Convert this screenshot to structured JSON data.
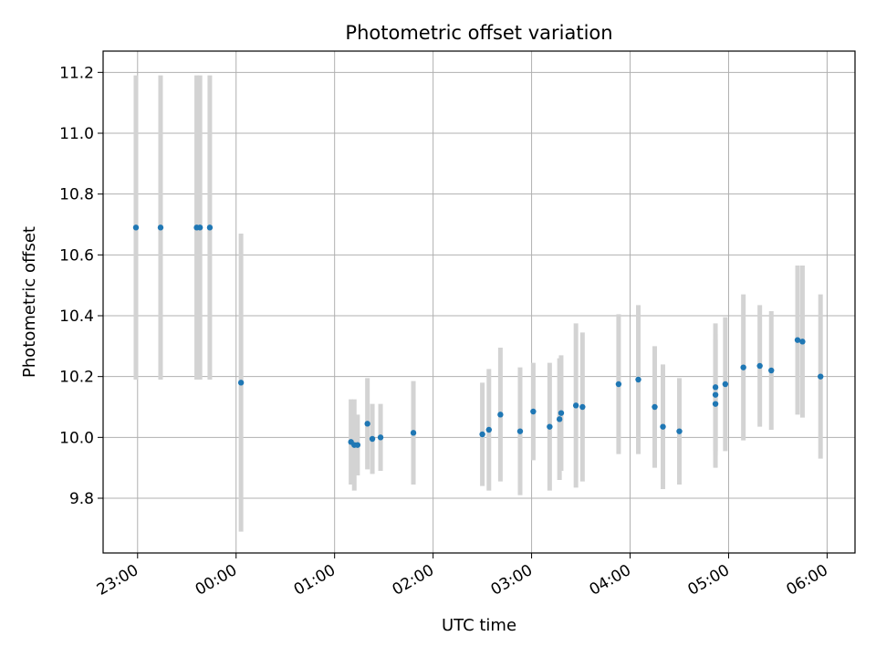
{
  "chart_data": {
    "type": "scatter",
    "title": "Photometric offset variation",
    "xlabel": "UTC time",
    "ylabel": "Photometric offset",
    "grid": true,
    "x_unit": "UTC time of night (22:xx and 23:xx are the evening before; following times are after midnight)",
    "xlim": [
      "22:39",
      "06:17"
    ],
    "ylim": [
      9.62,
      11.27
    ],
    "x_ticks": [
      "23:00",
      "00:00",
      "01:00",
      "02:00",
      "03:00",
      "04:00",
      "05:00",
      "06:00"
    ],
    "y_ticks": [
      "9.8",
      "10.0",
      "10.2",
      "10.4",
      "10.6",
      "10.8",
      "11.0",
      "11.2"
    ],
    "point_color": "#1f77b4",
    "errorbar_color": "#d3d3d3",
    "series": [
      {
        "points": [
          {
            "x": "22:59",
            "y": 10.69,
            "err": 0.5
          },
          {
            "x": "23:14",
            "y": 10.69,
            "err": 0.5
          },
          {
            "x": "23:36",
            "y": 10.69,
            "err": 0.5
          },
          {
            "x": "23:38",
            "y": 10.69,
            "err": 0.5
          },
          {
            "x": "23:44",
            "y": 10.69,
            "err": 0.5
          },
          {
            "x": "00:03",
            "y": 10.18,
            "err": 0.49
          },
          {
            "x": "01:10",
            "y": 9.985,
            "err": 0.14
          },
          {
            "x": "01:12",
            "y": 9.975,
            "err": 0.15
          },
          {
            "x": "01:14",
            "y": 9.975,
            "err": 0.1
          },
          {
            "x": "01:20",
            "y": 10.045,
            "err": 0.15
          },
          {
            "x": "01:23",
            "y": 9.995,
            "err": 0.115
          },
          {
            "x": "01:28",
            "y": 10.0,
            "err": 0.11
          },
          {
            "x": "01:48",
            "y": 10.015,
            "err": 0.17
          },
          {
            "x": "02:30",
            "y": 10.01,
            "err": 0.17
          },
          {
            "x": "02:34",
            "y": 10.025,
            "err": 0.2
          },
          {
            "x": "02:41",
            "y": 10.075,
            "err": 0.22
          },
          {
            "x": "02:53",
            "y": 10.02,
            "err": 0.21
          },
          {
            "x": "03:01",
            "y": 10.085,
            "err": 0.16
          },
          {
            "x": "03:11",
            "y": 10.035,
            "err": 0.21
          },
          {
            "x": "03:17",
            "y": 10.06,
            "err": 0.2
          },
          {
            "x": "03:18",
            "y": 10.08,
            "err": 0.19
          },
          {
            "x": "03:27",
            "y": 10.105,
            "err": 0.27
          },
          {
            "x": "03:31",
            "y": 10.1,
            "err": 0.245
          },
          {
            "x": "03:53",
            "y": 10.175,
            "err": 0.23
          },
          {
            "x": "04:05",
            "y": 10.19,
            "err": 0.245
          },
          {
            "x": "04:15",
            "y": 10.1,
            "err": 0.2
          },
          {
            "x": "04:20",
            "y": 10.035,
            "err": 0.205
          },
          {
            "x": "04:30",
            "y": 10.02,
            "err": 0.175
          },
          {
            "x": "04:52",
            "y": 10.11,
            "err": 0.21
          },
          {
            "x": "04:52",
            "y": 10.14,
            "err": 0.2
          },
          {
            "x": "04:52",
            "y": 10.165,
            "err": 0.21
          },
          {
            "x": "04:58",
            "y": 10.175,
            "err": 0.22
          },
          {
            "x": "05:09",
            "y": 10.23,
            "err": 0.24
          },
          {
            "x": "05:19",
            "y": 10.235,
            "err": 0.2
          },
          {
            "x": "05:26",
            "y": 10.22,
            "err": 0.195
          },
          {
            "x": "05:42",
            "y": 10.32,
            "err": 0.245
          },
          {
            "x": "05:45",
            "y": 10.315,
            "err": 0.25
          },
          {
            "x": "05:56",
            "y": 10.2,
            "err": 0.27
          }
        ]
      }
    ]
  }
}
